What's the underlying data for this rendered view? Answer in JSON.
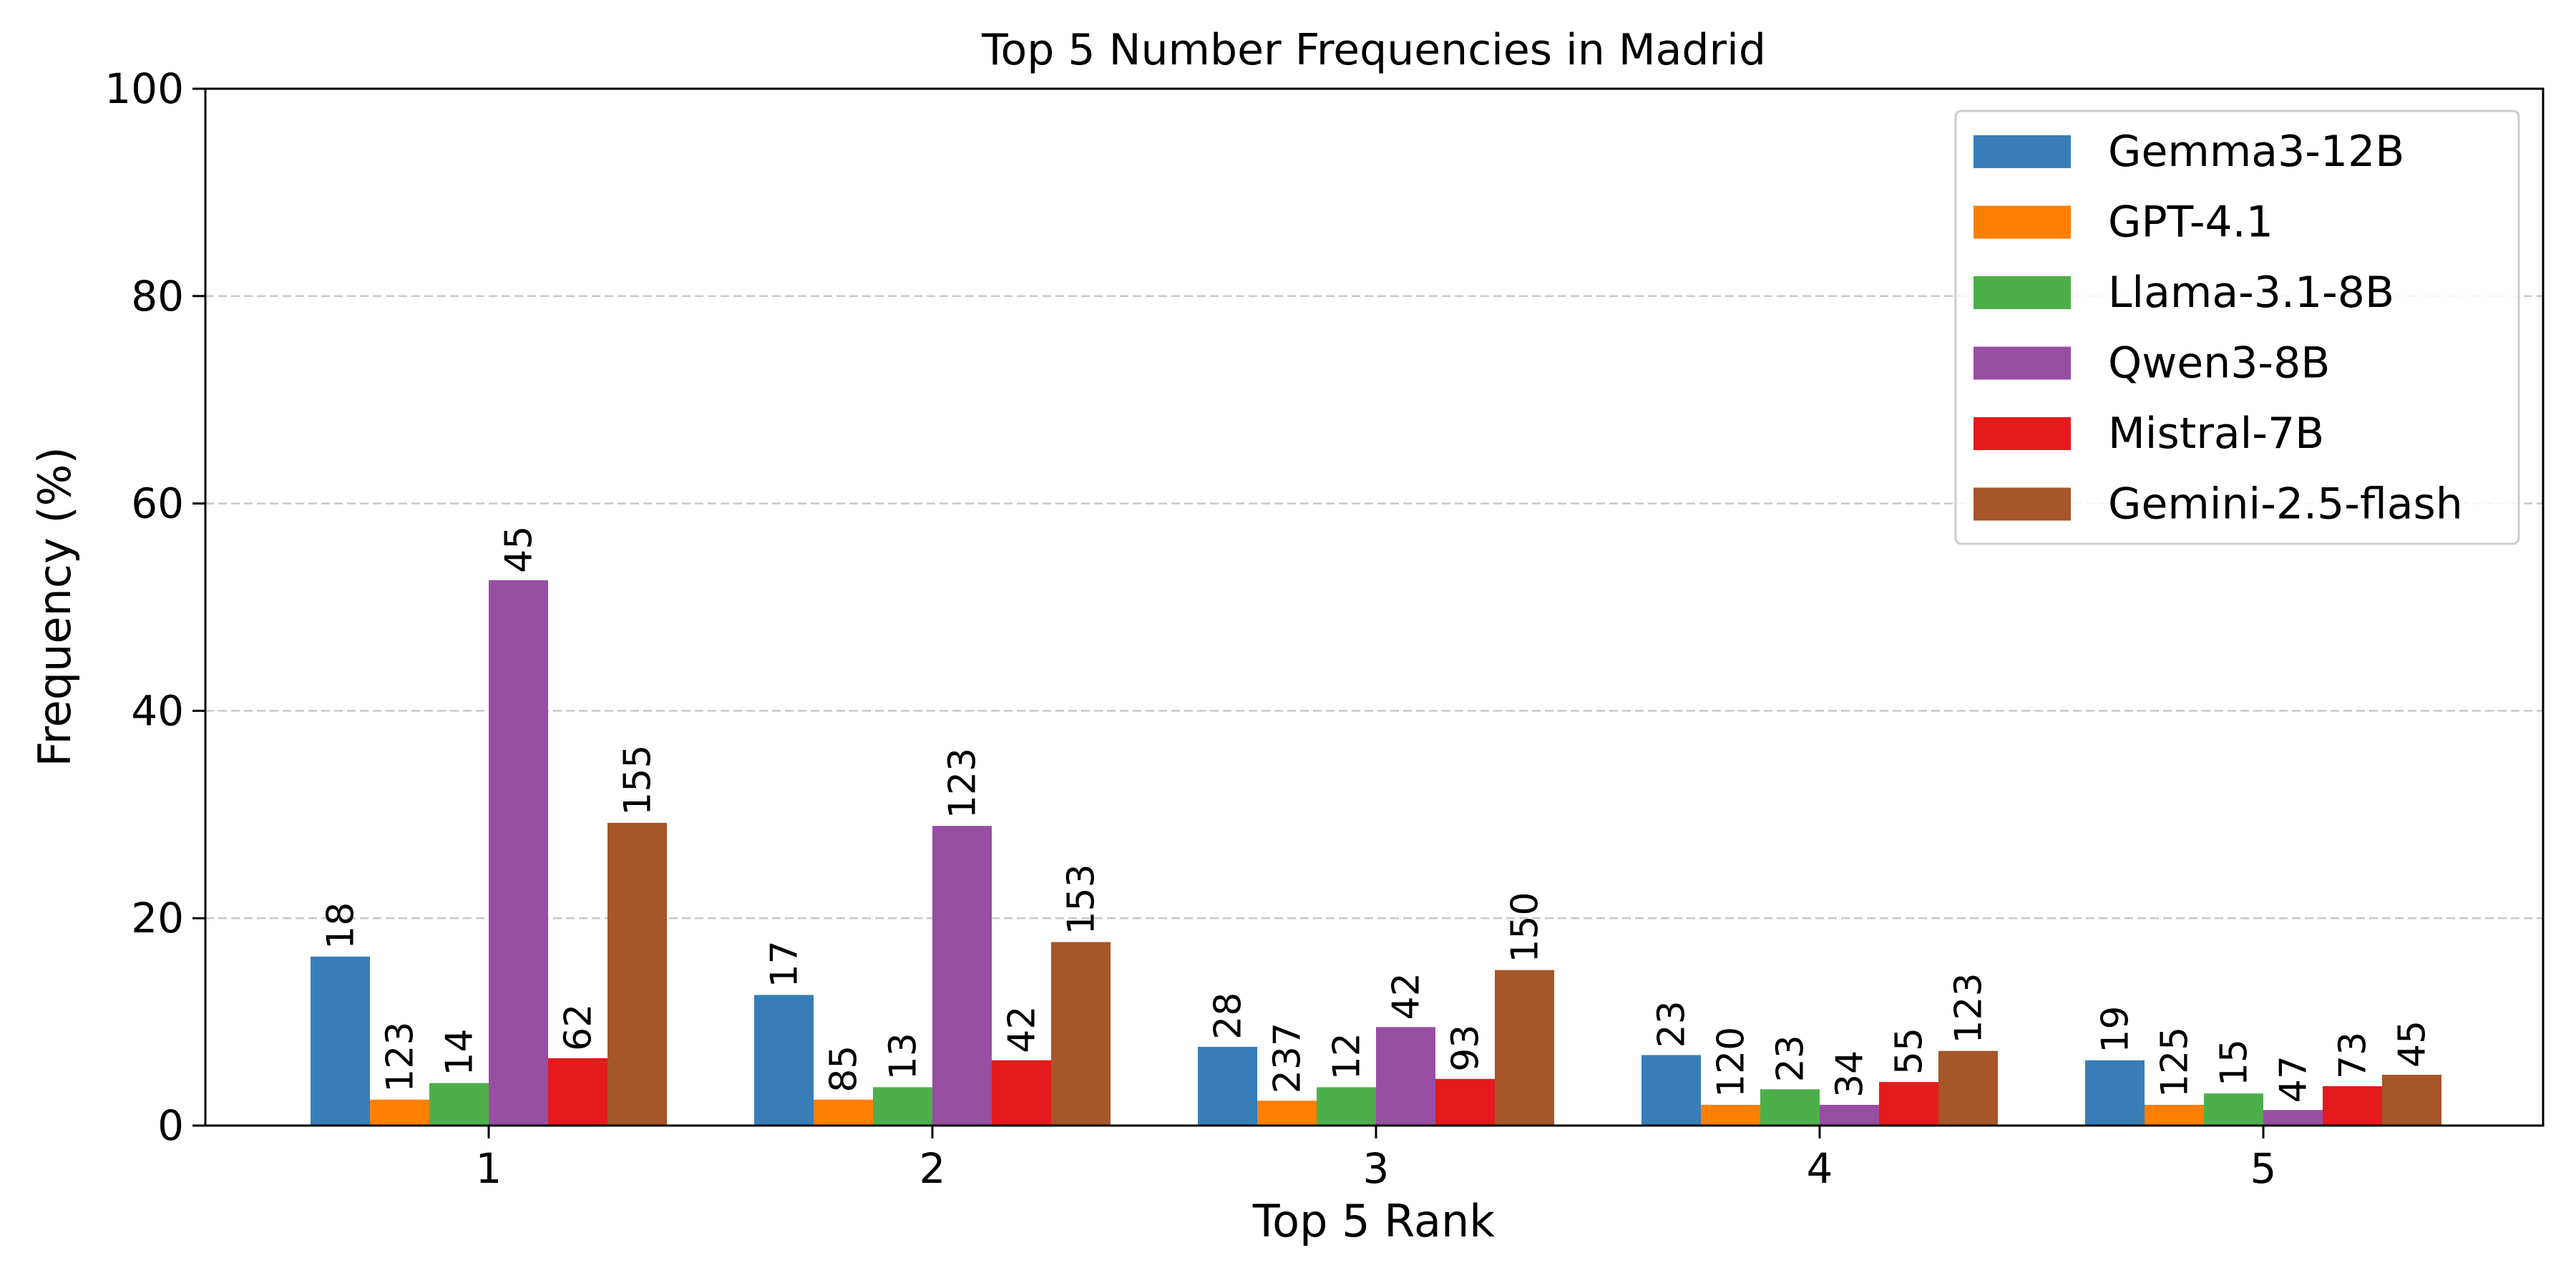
{
  "chart_data": {
    "type": "bar",
    "title": "Top 5 Number Frequencies in Madrid",
    "xlabel": "Top 5 Rank",
    "ylabel": "Frequency (%)",
    "ylim": [
      0,
      100
    ],
    "yticks": [
      0,
      20,
      40,
      60,
      80,
      100
    ],
    "grid": "horizontal dashed",
    "legend_position": "top-right",
    "categories": [
      "1",
      "2",
      "3",
      "4",
      "5"
    ],
    "series": [
      {
        "name": "Gemma3-12B",
        "color": "#377eb8",
        "values": [
          16.3,
          12.6,
          7.6,
          6.8,
          6.3
        ],
        "labels": [
          "18",
          "17",
          "28",
          "23",
          "19"
        ]
      },
      {
        "name": "GPT-4.1",
        "color": "#ff7f00",
        "values": [
          2.5,
          2.5,
          2.4,
          2.0,
          2.0
        ],
        "labels": [
          "123",
          "85",
          "237",
          "120",
          "125"
        ]
      },
      {
        "name": "Llama-3.1-8B",
        "color": "#4daf4a",
        "values": [
          4.1,
          3.7,
          3.7,
          3.5,
          3.1
        ],
        "labels": [
          "14",
          "13",
          "12",
          "23",
          "15"
        ]
      },
      {
        "name": "Qwen3-8B",
        "color": "#984ea3",
        "values": [
          52.6,
          28.9,
          9.5,
          2.0,
          1.5
        ],
        "labels": [
          "45",
          "123",
          "42",
          "34",
          "47"
        ]
      },
      {
        "name": "Mistral-7B",
        "color": "#e41a1c",
        "values": [
          6.5,
          6.3,
          4.5,
          4.2,
          3.8
        ],
        "labels": [
          "62",
          "42",
          "93",
          "55",
          "73"
        ]
      },
      {
        "name": "Gemini-2.5-flash",
        "color": "#a65628",
        "values": [
          29.2,
          17.7,
          15.0,
          7.2,
          4.9
        ],
        "labels": [
          "155",
          "153",
          "150",
          "123",
          "45"
        ]
      }
    ]
  }
}
